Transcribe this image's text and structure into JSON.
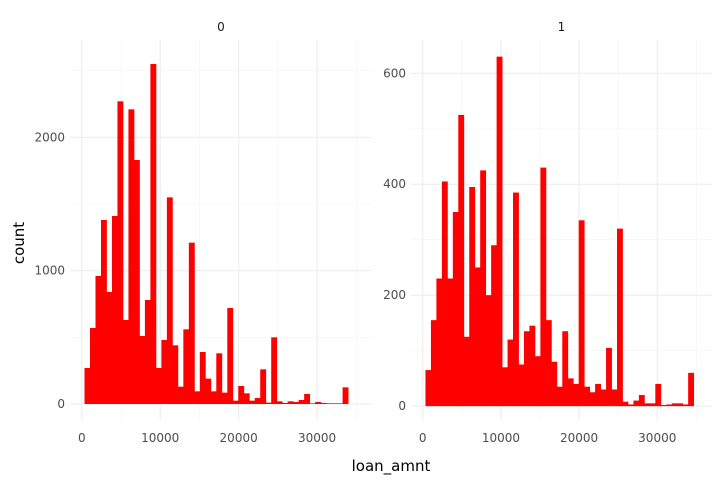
{
  "chart_data": {
    "type": "bar",
    "theme": "minimal",
    "xlabel": "loan_amnt",
    "ylabel": "count",
    "bar_color": "#ff0000",
    "grid": true,
    "bin_width": 700,
    "panels": [
      {
        "label": "0",
        "xlim": [
          -1500,
          37000
        ],
        "ylim": [
          -120,
          2730
        ],
        "xticks": [
          0,
          10000,
          20000,
          30000
        ],
        "xtick_labels": [
          "0",
          "10000",
          "20000",
          "30000"
        ],
        "yticks": [
          0,
          1000,
          2000
        ],
        "ytick_labels": [
          "0",
          "1000",
          "2000"
        ],
        "bins_start": [
          350,
          1050,
          1750,
          2450,
          3150,
          3850,
          4550,
          5250,
          5950,
          6650,
          7350,
          8050,
          8750,
          9450,
          10150,
          10850,
          11550,
          12250,
          12950,
          13650,
          14350,
          15050,
          15750,
          16450,
          17150,
          17850,
          18550,
          19250,
          19950,
          20650,
          21350,
          22050,
          22750,
          23450,
          24150,
          24850,
          25550,
          26250,
          26950,
          27650,
          28350,
          29050,
          29750,
          30450,
          31150,
          31850,
          32550,
          33250,
          33950,
          34650
        ],
        "counts": [
          270,
          570,
          960,
          1380,
          840,
          1410,
          2270,
          630,
          2210,
          1830,
          510,
          780,
          2550,
          270,
          480,
          1550,
          440,
          130,
          560,
          1210,
          95,
          390,
          190,
          95,
          380,
          85,
          720,
          25,
          135,
          80,
          25,
          45,
          260,
          10,
          500,
          20,
          8,
          20,
          15,
          30,
          75,
          5,
          15,
          8,
          5,
          5,
          5,
          125,
          0,
          0
        ]
      },
      {
        "label": "1",
        "xlim": [
          -1500,
          37000
        ],
        "ylim": [
          -25,
          660
        ],
        "xticks": [
          0,
          10000,
          20000,
          30000
        ],
        "xtick_labels": [
          "0",
          "10000",
          "20000",
          "30000"
        ],
        "yticks": [
          0,
          200,
          400,
          600
        ],
        "ytick_labels": [
          "0",
          "200",
          "400",
          "600"
        ],
        "bins_start": [
          350,
          1050,
          1750,
          2450,
          3150,
          3850,
          4550,
          5250,
          5950,
          6650,
          7350,
          8050,
          8750,
          9450,
          10150,
          10850,
          11550,
          12250,
          12950,
          13650,
          14350,
          15050,
          15750,
          16450,
          17150,
          17850,
          18550,
          19250,
          19950,
          20650,
          21350,
          22050,
          22750,
          23450,
          24150,
          24850,
          25550,
          26250,
          26950,
          27650,
          28350,
          29050,
          29750,
          30450,
          31150,
          31850,
          32550,
          33250,
          33950,
          34650
        ],
        "counts": [
          65,
          155,
          230,
          405,
          230,
          350,
          525,
          125,
          395,
          250,
          425,
          200,
          290,
          630,
          70,
          120,
          385,
          75,
          135,
          145,
          90,
          430,
          155,
          80,
          35,
          135,
          50,
          40,
          335,
          35,
          25,
          40,
          30,
          105,
          30,
          320,
          8,
          3,
          10,
          20,
          5,
          5,
          40,
          2,
          3,
          5,
          5,
          3,
          60,
          0
        ]
      }
    ]
  }
}
